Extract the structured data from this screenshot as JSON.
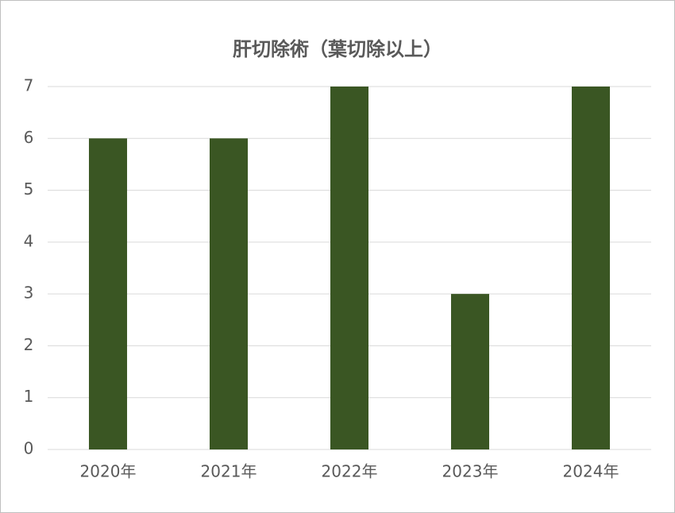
{
  "chart_data": {
    "type": "bar",
    "title": "肝切除術（葉切除以上）",
    "categories": [
      "2020年",
      "2021年",
      "2022年",
      "2023年",
      "2024年"
    ],
    "values": [
      6,
      6,
      7,
      3,
      7
    ],
    "color": "#3a5623",
    "ylim": [
      0,
      7
    ],
    "yticks": [
      0,
      1,
      2,
      3,
      4,
      5,
      6,
      7
    ],
    "grid": true
  }
}
